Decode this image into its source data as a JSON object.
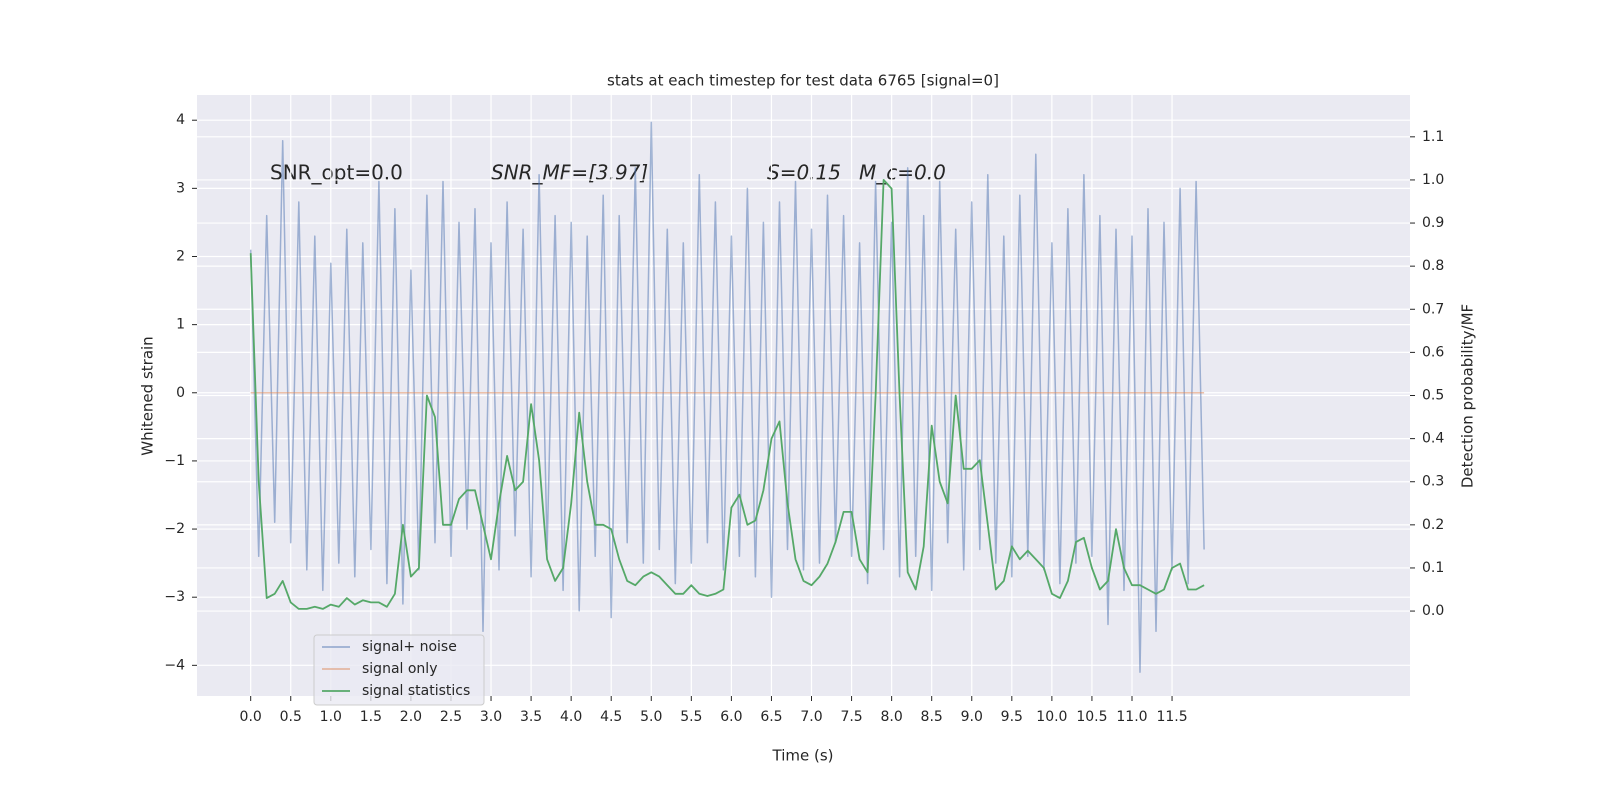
{
  "chart_data": {
    "type": "line",
    "title": "stats at each timestep for test data 6765 [signal=0]",
    "xlabel": "Time (s)",
    "ylabel": "Whitened strain",
    "y2label": "Detection probability/MF",
    "annotations": [
      "SNR_opt=0.0",
      "SNR_MF=[3.97]",
      "S=0.15",
      "M_c=0.0"
    ],
    "grid": true,
    "legend": "lower left",
    "xlim": [
      -0.67,
      14.47
    ],
    "ylim": [
      -4.45,
      4.37
    ],
    "y2lim": [
      -0.197,
      1.197
    ],
    "xticks": [
      {
        "value": 0,
        "label": "0.0"
      },
      0.5,
      {
        "value": 1,
        "label": "1.0"
      },
      1.5,
      {
        "value": 2,
        "label": "2.0"
      },
      2.5,
      {
        "value": 3,
        "label": "3.0"
      },
      3.5,
      {
        "value": 4,
        "label": "4.0"
      },
      4.5,
      {
        "value": 5,
        "label": "5.0"
      },
      5.5,
      {
        "value": 6,
        "label": "6.0"
      },
      6.5,
      {
        "value": 7,
        "label": "7.0"
      },
      7.5,
      {
        "value": 8,
        "label": "8.0"
      },
      8.5,
      {
        "value": 9,
        "label": "9.0"
      },
      9.5,
      {
        "value": 10,
        "label": "10.0"
      },
      10.5,
      {
        "value": 11,
        "label": "11.0"
      },
      11.5
    ],
    "yticks": [
      {
        "value": -4,
        "label": "−4"
      },
      {
        "value": -3,
        "label": "−3"
      },
      {
        "value": -2,
        "label": "−2"
      },
      {
        "value": -1,
        "label": "−1"
      },
      0,
      1,
      2,
      3,
      4
    ],
    "y2ticks": [
      {
        "value": 0,
        "label": "0.0"
      },
      0.1,
      0.2,
      0.3,
      0.4,
      0.5,
      0.6,
      0.7,
      0.8,
      0.9,
      {
        "value": 1,
        "label": "1.0"
      },
      1.1
    ],
    "x": [
      0,
      0.1,
      0.2,
      0.3,
      0.4,
      0.5,
      0.6,
      0.7,
      0.8,
      0.9,
      1,
      1.1,
      1.2,
      1.3,
      1.4,
      1.5,
      1.6,
      1.7,
      1.8,
      1.9,
      2,
      2.1,
      2.2,
      2.3,
      2.4,
      2.5,
      2.6,
      2.7,
      2.8,
      2.9,
      3,
      3.1,
      3.2,
      3.3,
      3.4,
      3.5,
      3.6,
      3.7,
      3.8,
      3.9,
      4,
      4.1,
      4.2,
      4.3,
      4.4,
      4.5,
      4.6,
      4.7,
      4.8,
      4.9,
      5,
      5.1,
      5.2,
      5.3,
      5.4,
      5.5,
      5.6,
      5.7,
      5.8,
      5.9,
      6,
      6.1,
      6.2,
      6.3,
      6.4,
      6.5,
      6.6,
      6.7,
      6.8,
      6.9,
      7,
      7.1,
      7.2,
      7.3,
      7.4,
      7.5,
      7.6,
      7.7,
      7.8,
      7.9,
      8,
      8.1,
      8.2,
      8.3,
      8.4,
      8.5,
      8.6,
      8.7,
      8.8,
      8.9,
      9,
      9.1,
      9.2,
      9.3,
      9.4,
      9.5,
      9.6,
      9.7,
      9.8,
      9.9,
      10,
      10.1,
      10.2,
      10.3,
      10.4,
      10.5,
      10.6,
      10.7,
      10.8,
      10.9,
      11,
      11.1,
      11.2,
      11.3,
      11.4,
      11.5,
      11.6,
      11.7,
      11.8,
      11.9
    ],
    "series": [
      {
        "name": "signal+ noise",
        "color": "#4c72b0",
        "values": [
          2.1,
          -2.4,
          2.6,
          -1.9,
          3.7,
          -2.2,
          2.8,
          -2.6,
          2.3,
          -2.9,
          1.9,
          -2.5,
          2.4,
          -2.7,
          2.2,
          -2.3,
          3.1,
          -2.8,
          2.7,
          -3.1,
          1.8,
          -2.6,
          2.9,
          -2.2,
          3.1,
          -2.4,
          2.5,
          -2.0,
          2.7,
          -3.5,
          2.2,
          -2.6,
          2.8,
          -2.1,
          2.4,
          -2.7,
          3.2,
          -2.3,
          2.6,
          -2.9,
          2.5,
          -3.2,
          2.3,
          -2.4,
          2.9,
          -3.3,
          2.6,
          -2.2,
          3.3,
          -2.5,
          3.97,
          -2.3,
          2.4,
          -2.8,
          2.2,
          -2.5,
          3.2,
          -2.2,
          2.8,
          -2.6,
          2.3,
          -2.4,
          3.0,
          -2.7,
          2.5,
          -3.0,
          2.8,
          -2.3,
          3.1,
          -2.6,
          2.4,
          -2.5,
          2.9,
          -2.2,
          2.6,
          -2.4,
          2.2,
          -2.8,
          3.1,
          -2.3,
          2.5,
          -2.7,
          3.3,
          -2.4,
          2.6,
          -2.9,
          3.1,
          -2.2,
          2.4,
          -2.6,
          2.8,
          -2.3,
          3.2,
          -2.5,
          2.3,
          -2.7,
          2.9,
          -2.4,
          3.5,
          -2.6,
          2.2,
          -2.8,
          2.7,
          -2.5,
          3.2,
          -2.4,
          2.6,
          -3.4,
          2.4,
          -2.9,
          2.3,
          -4.1,
          2.7,
          -3.5,
          2.5,
          -2.6,
          3.0,
          -2.8,
          3.1,
          -2.3
        ]
      },
      {
        "name": "signal only",
        "color": "#dd8452",
        "values": [
          0,
          0,
          0,
          0,
          0,
          0,
          0,
          0,
          0,
          0,
          0,
          0,
          0,
          0,
          0,
          0,
          0,
          0,
          0,
          0,
          0,
          0,
          0,
          0,
          0,
          0,
          0,
          0,
          0,
          0,
          0,
          0,
          0,
          0,
          0,
          0,
          0,
          0,
          0,
          0,
          0,
          0,
          0,
          0,
          0,
          0,
          0,
          0,
          0,
          0,
          0,
          0,
          0,
          0,
          0,
          0,
          0,
          0,
          0,
          0,
          0,
          0,
          0,
          0,
          0,
          0,
          0,
          0,
          0,
          0,
          0,
          0,
          0,
          0,
          0,
          0,
          0,
          0,
          0,
          0,
          0,
          0,
          0,
          0,
          0,
          0,
          0,
          0,
          0,
          0,
          0,
          0,
          0,
          0,
          0,
          0,
          0,
          0,
          0,
          0,
          0,
          0,
          0,
          0,
          0,
          0,
          0,
          0,
          0,
          0,
          0,
          0,
          0,
          0,
          0,
          0,
          0,
          0,
          0,
          0
        ]
      },
      {
        "name": "signal statistics",
        "color": "#55a868",
        "axis": "y2",
        "values": [
          0.83,
          0.3,
          0.03,
          0.04,
          0.07,
          0.02,
          0.005,
          0.005,
          0.01,
          0.005,
          0.015,
          0.01,
          0.03,
          0.015,
          0.025,
          0.02,
          0.02,
          0.01,
          0.04,
          0.2,
          0.08,
          0.1,
          0.5,
          0.45,
          0.2,
          0.2,
          0.26,
          0.28,
          0.28,
          0.2,
          0.12,
          0.25,
          0.36,
          0.28,
          0.3,
          0.48,
          0.35,
          0.12,
          0.07,
          0.1,
          0.25,
          0.46,
          0.3,
          0.2,
          0.2,
          0.19,
          0.12,
          0.07,
          0.06,
          0.08,
          0.09,
          0.08,
          0.06,
          0.04,
          0.04,
          0.06,
          0.04,
          0.035,
          0.04,
          0.05,
          0.24,
          0.27,
          0.2,
          0.21,
          0.28,
          0.4,
          0.44,
          0.25,
          0.12,
          0.07,
          0.06,
          0.08,
          0.11,
          0.16,
          0.23,
          0.23,
          0.12,
          0.09,
          0.5,
          1.0,
          0.98,
          0.5,
          0.09,
          0.05,
          0.15,
          0.43,
          0.3,
          0.25,
          0.5,
          0.33,
          0.33,
          0.35,
          0.2,
          0.05,
          0.07,
          0.15,
          0.12,
          0.14,
          0.12,
          0.1,
          0.04,
          0.03,
          0.07,
          0.16,
          0.17,
          0.1,
          0.05,
          0.07,
          0.19,
          0.1,
          0.06,
          0.06,
          0.05,
          0.04,
          0.05,
          0.1,
          0.11,
          0.05,
          0.05,
          0.06
        ]
      }
    ]
  }
}
